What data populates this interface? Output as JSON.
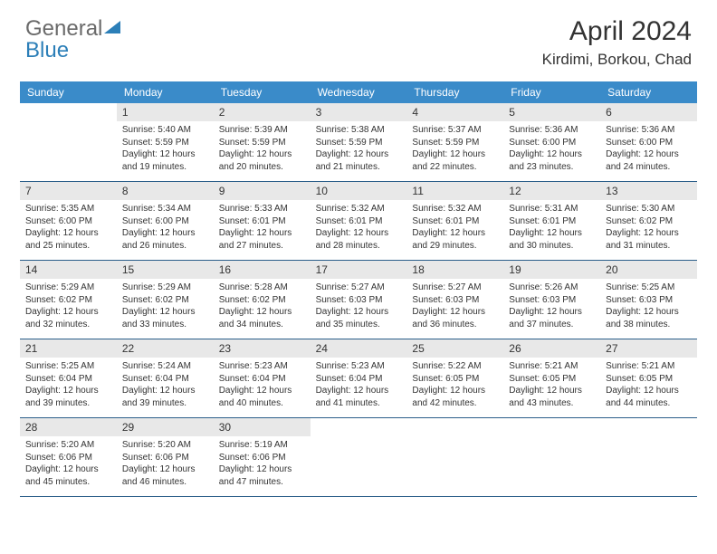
{
  "logo": {
    "text1": "General",
    "text2": "Blue"
  },
  "title": "April 2024",
  "location": "Kirdimi, Borkou, Chad",
  "weekdays": [
    "Sunday",
    "Monday",
    "Tuesday",
    "Wednesday",
    "Thursday",
    "Friday",
    "Saturday"
  ],
  "style": {
    "header_bg": "#3a8bc9",
    "header_text": "#ffffff",
    "daynum_bg": "#e8e8e8",
    "border_color": "#2c5f8a",
    "body_font_size": 10,
    "weekday_font_size": 12,
    "title_font_size": 30,
    "location_font_size": 17
  },
  "first_weekday_offset": 1,
  "days": [
    {
      "n": 1,
      "sr": "5:40 AM",
      "ss": "5:59 PM",
      "dl": "12 hours and 19 minutes."
    },
    {
      "n": 2,
      "sr": "5:39 AM",
      "ss": "5:59 PM",
      "dl": "12 hours and 20 minutes."
    },
    {
      "n": 3,
      "sr": "5:38 AM",
      "ss": "5:59 PM",
      "dl": "12 hours and 21 minutes."
    },
    {
      "n": 4,
      "sr": "5:37 AM",
      "ss": "5:59 PM",
      "dl": "12 hours and 22 minutes."
    },
    {
      "n": 5,
      "sr": "5:36 AM",
      "ss": "6:00 PM",
      "dl": "12 hours and 23 minutes."
    },
    {
      "n": 6,
      "sr": "5:36 AM",
      "ss": "6:00 PM",
      "dl": "12 hours and 24 minutes."
    },
    {
      "n": 7,
      "sr": "5:35 AM",
      "ss": "6:00 PM",
      "dl": "12 hours and 25 minutes."
    },
    {
      "n": 8,
      "sr": "5:34 AM",
      "ss": "6:00 PM",
      "dl": "12 hours and 26 minutes."
    },
    {
      "n": 9,
      "sr": "5:33 AM",
      "ss": "6:01 PM",
      "dl": "12 hours and 27 minutes."
    },
    {
      "n": 10,
      "sr": "5:32 AM",
      "ss": "6:01 PM",
      "dl": "12 hours and 28 minutes."
    },
    {
      "n": 11,
      "sr": "5:32 AM",
      "ss": "6:01 PM",
      "dl": "12 hours and 29 minutes."
    },
    {
      "n": 12,
      "sr": "5:31 AM",
      "ss": "6:01 PM",
      "dl": "12 hours and 30 minutes."
    },
    {
      "n": 13,
      "sr": "5:30 AM",
      "ss": "6:02 PM",
      "dl": "12 hours and 31 minutes."
    },
    {
      "n": 14,
      "sr": "5:29 AM",
      "ss": "6:02 PM",
      "dl": "12 hours and 32 minutes."
    },
    {
      "n": 15,
      "sr": "5:29 AM",
      "ss": "6:02 PM",
      "dl": "12 hours and 33 minutes."
    },
    {
      "n": 16,
      "sr": "5:28 AM",
      "ss": "6:02 PM",
      "dl": "12 hours and 34 minutes."
    },
    {
      "n": 17,
      "sr": "5:27 AM",
      "ss": "6:03 PM",
      "dl": "12 hours and 35 minutes."
    },
    {
      "n": 18,
      "sr": "5:27 AM",
      "ss": "6:03 PM",
      "dl": "12 hours and 36 minutes."
    },
    {
      "n": 19,
      "sr": "5:26 AM",
      "ss": "6:03 PM",
      "dl": "12 hours and 37 minutes."
    },
    {
      "n": 20,
      "sr": "5:25 AM",
      "ss": "6:03 PM",
      "dl": "12 hours and 38 minutes."
    },
    {
      "n": 21,
      "sr": "5:25 AM",
      "ss": "6:04 PM",
      "dl": "12 hours and 39 minutes."
    },
    {
      "n": 22,
      "sr": "5:24 AM",
      "ss": "6:04 PM",
      "dl": "12 hours and 39 minutes."
    },
    {
      "n": 23,
      "sr": "5:23 AM",
      "ss": "6:04 PM",
      "dl": "12 hours and 40 minutes."
    },
    {
      "n": 24,
      "sr": "5:23 AM",
      "ss": "6:04 PM",
      "dl": "12 hours and 41 minutes."
    },
    {
      "n": 25,
      "sr": "5:22 AM",
      "ss": "6:05 PM",
      "dl": "12 hours and 42 minutes."
    },
    {
      "n": 26,
      "sr": "5:21 AM",
      "ss": "6:05 PM",
      "dl": "12 hours and 43 minutes."
    },
    {
      "n": 27,
      "sr": "5:21 AM",
      "ss": "6:05 PM",
      "dl": "12 hours and 44 minutes."
    },
    {
      "n": 28,
      "sr": "5:20 AM",
      "ss": "6:06 PM",
      "dl": "12 hours and 45 minutes."
    },
    {
      "n": 29,
      "sr": "5:20 AM",
      "ss": "6:06 PM",
      "dl": "12 hours and 46 minutes."
    },
    {
      "n": 30,
      "sr": "5:19 AM",
      "ss": "6:06 PM",
      "dl": "12 hours and 47 minutes."
    }
  ],
  "labels": {
    "sunrise": "Sunrise:",
    "sunset": "Sunset:",
    "daylight": "Daylight:"
  }
}
